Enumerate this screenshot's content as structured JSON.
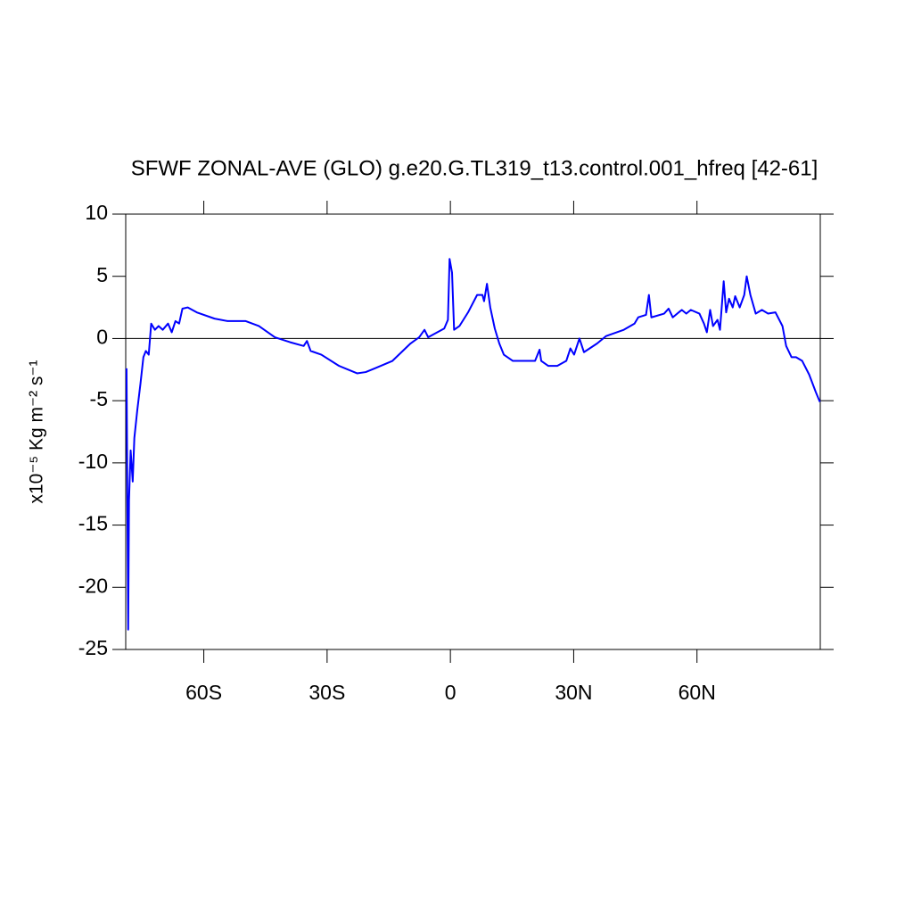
{
  "chart_data": {
    "type": "line",
    "title": "SFWF ZONAL-AVE (GLO) g.e20.G.TL319_t13.control.001_hfreq [42-61]",
    "ylabel": "x10⁻⁵ Kg m⁻² s⁻¹",
    "x": [
      -78.8,
      -78.4,
      -78.2,
      -77.8,
      -77.3,
      -76.9,
      -76.2,
      -75.4,
      -74.7,
      -74.1,
      -73.4,
      -72.8,
      -71.9,
      -71,
      -70,
      -68.7,
      -67.8,
      -66.9,
      -66,
      -65.2,
      -63.9,
      -61.7,
      -57.4,
      -54.2,
      -49.8,
      -46.6,
      -42.7,
      -39,
      -35.7,
      -34.9,
      -34,
      -31.4,
      -27.1,
      -22.7,
      -20.6,
      -18.4,
      -14.1,
      -9.7,
      -7.6,
      -6.3,
      -5.4,
      -3.2,
      -1.5,
      -0.6,
      -0.2,
      0.4,
      0.9,
      2.2,
      4.3,
      6.5,
      7.8,
      8.2,
      8.9,
      9.7,
      10.8,
      11.9,
      13,
      15.2,
      18.4,
      20.6,
      21.7,
      22.1,
      23.8,
      26,
      28.2,
      29.2,
      30.1,
      31.4,
      32.5,
      35.7,
      37.9,
      42.2,
      44.8,
      45.7,
      47.6,
      48.3,
      48.9,
      52,
      53.1,
      54.1,
      56.3,
      57.4,
      58.5,
      60.6,
      61.7,
      62.4,
      63.2,
      63.9,
      65,
      65.6,
      66.5,
      67.1,
      67.8,
      68.7,
      69.3,
      70.4,
      71.5,
      72.1,
      73,
      74.3,
      75.8,
      77.3,
      79.1,
      80.8,
      81.7,
      83,
      84.1,
      85.6,
      87.3,
      88.9,
      89.9
    ],
    "series": [
      {
        "name": "SFWF",
        "color": "#0000ff",
        "values": [
          -2.4,
          -23.4,
          -13,
          -9,
          -11.5,
          -8,
          -5.8,
          -3.6,
          -1.5,
          -1,
          -1.3,
          1.2,
          0.7,
          1,
          0.7,
          1.2,
          0.5,
          1.4,
          1.2,
          2.4,
          2.5,
          2.1,
          1.6,
          1.4,
          1.4,
          1.0,
          0.1,
          -0.3,
          -0.6,
          -0.2,
          -1,
          -1.3,
          -2.2,
          -2.8,
          -2.7,
          -2.4,
          -1.8,
          -0.4,
          0.1,
          0.7,
          0.1,
          0.5,
          0.8,
          1.5,
          6.4,
          5.3,
          0.7,
          1,
          2.1,
          3.5,
          3.5,
          3,
          4.4,
          2.5,
          0.8,
          -0.4,
          -1.3,
          -1.8,
          -1.8,
          -1.8,
          -0.9,
          -1.8,
          -2.2,
          -2.2,
          -1.8,
          -0.8,
          -1.3,
          0,
          -1.1,
          -0.4,
          0.2,
          0.7,
          1.2,
          1.7,
          1.9,
          3.5,
          1.7,
          2,
          2.4,
          1.7,
          2.3,
          2,
          2.3,
          2,
          1.2,
          0.5,
          2.3,
          1,
          1.5,
          0.7,
          4.6,
          2.1,
          3.2,
          2.5,
          3.4,
          2.5,
          3.5,
          5,
          3.5,
          2,
          2.3,
          2,
          2.1,
          1,
          -0.6,
          -1.5,
          -1.5,
          -1.8,
          -2.9,
          -4.3,
          -5.1
        ]
      }
    ],
    "xlim": [
      -79,
      90
    ],
    "xticks": [
      {
        "value": -60,
        "label": "60S"
      },
      {
        "value": -30,
        "label": "30S"
      },
      0,
      {
        "value": 30,
        "label": "30N"
      },
      {
        "value": 60,
        "label": "60N"
      }
    ],
    "ylim": [
      -25,
      10
    ],
    "yticks": [
      10,
      5,
      0,
      -5,
      -10,
      -15,
      -20,
      -25
    ],
    "reference_line": 0
  }
}
